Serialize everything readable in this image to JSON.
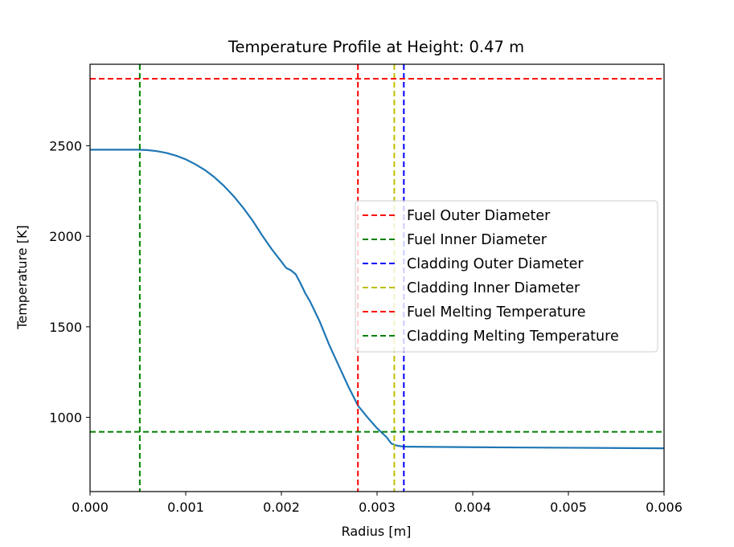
{
  "chart_data": {
    "type": "line",
    "title": "Temperature Profile at Height: 0.47 m",
    "xlabel": "Radius [m]",
    "ylabel": "Temperature [K]",
    "xlim": [
      0,
      0.006
    ],
    "ylim": [
      590,
      2950
    ],
    "xticks": [
      0.0,
      0.001,
      0.002,
      0.003,
      0.004,
      0.005,
      0.006
    ],
    "xtick_labels": [
      "0.000",
      "0.001",
      "0.002",
      "0.003",
      "0.004",
      "0.005",
      "0.006"
    ],
    "yticks": [
      1000,
      1500,
      2000,
      2500
    ],
    "ytick_labels": [
      "1000",
      "1500",
      "2000",
      "2500"
    ],
    "grid": false,
    "legend_position": "center-right",
    "series": [
      {
        "color": "#1f77b4",
        "x": [
          0,
          0.0003,
          0.0005,
          0.0006,
          0.0007,
          0.0008,
          0.0009,
          0.001,
          0.0011,
          0.0012,
          0.0013,
          0.0014,
          0.0015,
          0.0016,
          0.0017,
          0.0018,
          0.0019,
          0.002,
          0.00205,
          0.0021,
          0.00215,
          0.0022,
          0.00225,
          0.0023,
          0.0024,
          0.0025,
          0.0026,
          0.0027,
          0.0028,
          0.0029,
          0.003,
          0.0031,
          0.00315,
          0.0032,
          0.00325,
          0.0033,
          0.004,
          0.005,
          0.006
        ],
        "y": [
          2478,
          2478,
          2478,
          2476,
          2470,
          2460,
          2445,
          2425,
          2398,
          2366,
          2326,
          2278,
          2222,
          2158,
          2086,
          2004,
          1928,
          1860,
          1825,
          1812,
          1790,
          1740,
          1685,
          1640,
          1530,
          1400,
          1285,
          1170,
          1065,
          1000,
          940,
          890,
          855,
          845,
          840,
          838,
          835,
          832,
          829
        ]
      }
    ],
    "reference_lines": [
      {
        "orientation": "vertical",
        "value": 0.0028,
        "color": "#ff0000",
        "name": "Fuel Outer Diameter"
      },
      {
        "orientation": "vertical",
        "value": 0.00052,
        "color": "#008000",
        "name": "Fuel Inner Diameter"
      },
      {
        "orientation": "vertical",
        "value": 0.00328,
        "color": "#0000ff",
        "name": "Cladding Outer Diameter"
      },
      {
        "orientation": "vertical",
        "value": 0.00318,
        "color": "#bfbf00",
        "name": "Cladding Inner Diameter"
      },
      {
        "orientation": "horizontal",
        "value": 2870,
        "color": "#ff0000",
        "name": "Fuel Melting Temperature"
      },
      {
        "orientation": "horizontal",
        "value": 920,
        "color": "#008000",
        "name": "Cladding Melting Temperature"
      }
    ]
  }
}
